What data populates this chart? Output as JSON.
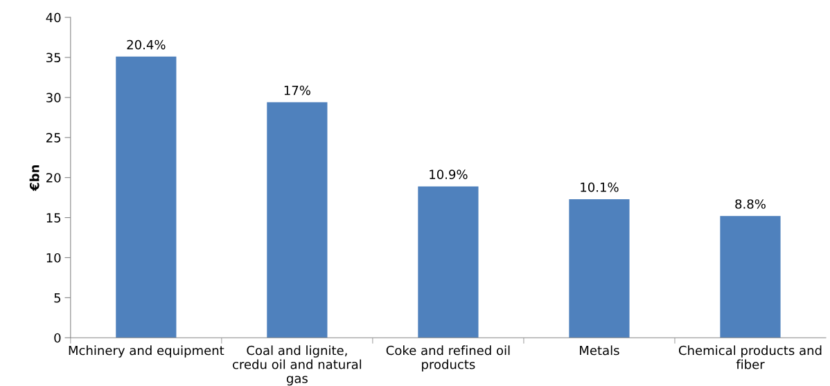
{
  "chart_data": {
    "type": "bar",
    "ylabel": "€bn",
    "categories": [
      "Mchinery and equipment",
      "Coal and lignite, credu oil and natural gas",
      "Coke and refined oil products",
      "Metals",
      "Chemical products and fiber"
    ],
    "values": [
      35.1,
      29.4,
      18.9,
      17.3,
      15.2
    ],
    "annotations": [
      {
        "text": "20.4%",
        "x": "Mchinery and equipment",
        "y": 35.1
      },
      {
        "text": "17%",
        "x": "Coal and lignite, credu oil and natural gas",
        "y": 29.4
      },
      {
        "text": "10.9%",
        "x": "Coke and refined oil products",
        "y": 18.9
      },
      {
        "text": "10.1%",
        "x": "Metals",
        "y": 17.3
      },
      {
        "text": "8.8%",
        "x": "Chemical products and fiber",
        "y": 15.2
      }
    ],
    "color": "#4f81bd",
    "ylim": [
      0,
      40
    ],
    "yticks": [
      0,
      5,
      10,
      15,
      20,
      25,
      30,
      35,
      40
    ],
    "grid": false,
    "legend": false
  }
}
